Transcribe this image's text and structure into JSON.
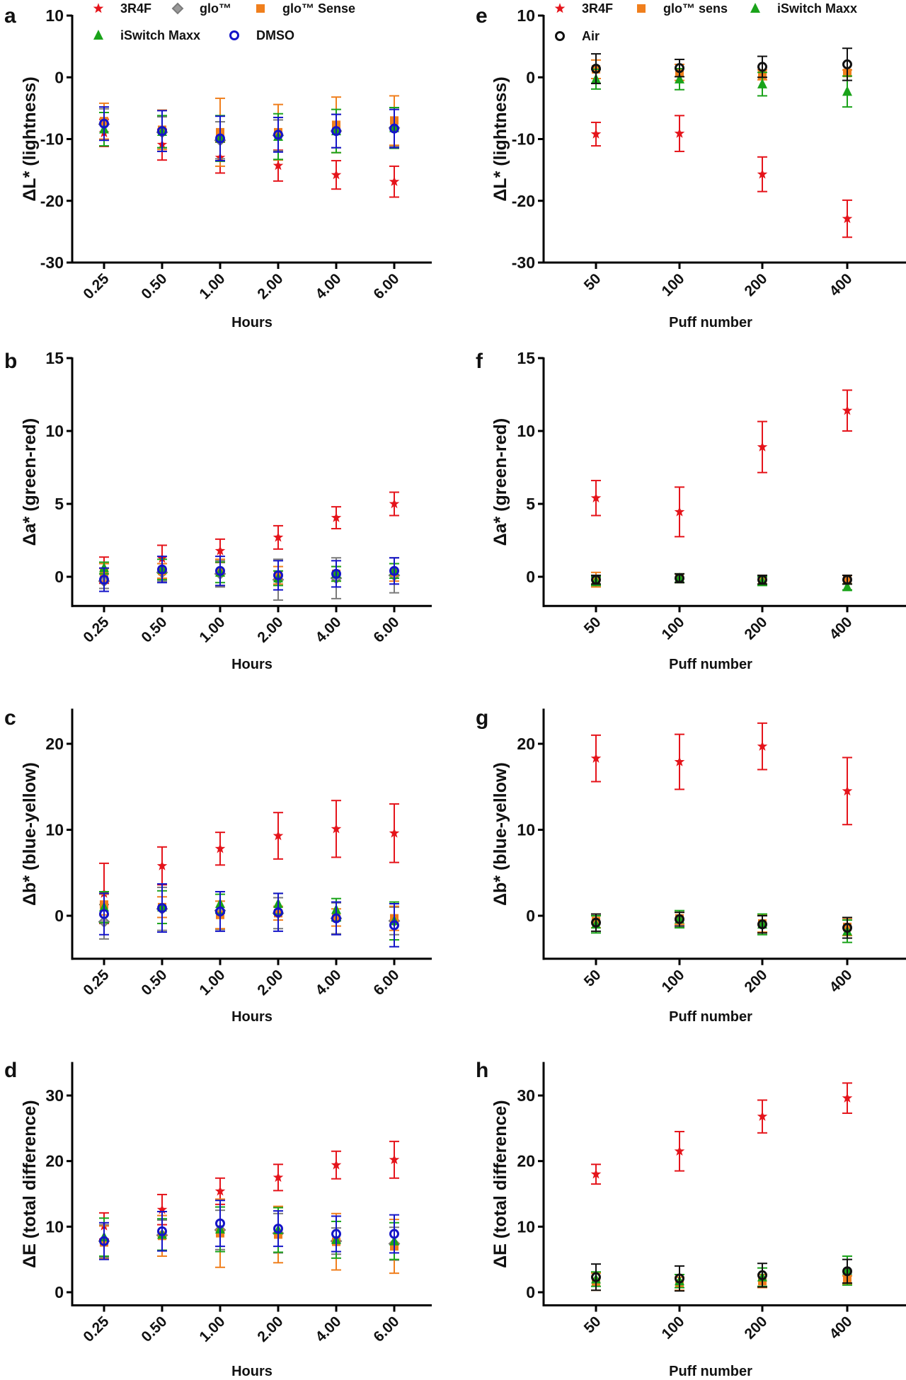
{
  "legends": [
    {
      "items": [
        "3R4F",
        "glo™",
        "glo™ Sense",
        "iSwitch Maxx",
        "DMSO"
      ]
    },
    {
      "items": [
        "3R4F",
        "glo™ sens",
        "iSwitch Maxx",
        "Air"
      ]
    }
  ],
  "series_styles": {
    "3R4F": {
      "marker": "star",
      "color": "#e5141b"
    },
    "glo™": {
      "marker": "diamond",
      "color": "#7a7a7a"
    },
    "glo™ Sense": {
      "marker": "square",
      "color": "#f07f1d"
    },
    "glo™ sens": {
      "marker": "square",
      "color": "#f07f1d"
    },
    "iSwitch Maxx": {
      "marker": "triangle",
      "color": "#1aa31a"
    },
    "DMSO": {
      "marker": "circle",
      "color": "#1414c8"
    },
    "Air": {
      "marker": "circle",
      "color": "#111111"
    }
  },
  "chart_data": [
    {
      "panel": "a",
      "type": "scatter",
      "xlabel": "Hours",
      "ylabel": "ΔL* (lightness)",
      "ylim": [
        -30,
        10
      ],
      "yticks": [
        10,
        0,
        -10,
        -20,
        -30
      ],
      "categories": [
        "0.25",
        "0.50",
        "1.00",
        "2.00",
        "4.00",
        "6.00"
      ],
      "series": [
        {
          "name": "3R4F",
          "mean": [
            -9.0,
            -10.9,
            -13.0,
            -14.3,
            -15.8,
            -16.9
          ],
          "sd": [
            2.2,
            2.5,
            2.5,
            2.5,
            2.3,
            2.5
          ]
        },
        {
          "name": "glo™",
          "mean": [
            -7.6,
            -8.9,
            -10.2,
            -9.4,
            -8.7,
            -8.2
          ],
          "sd": [
            2.5,
            2.5,
            3.0,
            2.5,
            2.7,
            3.0
          ]
        },
        {
          "name": "glo™ Sense",
          "mean": [
            -7.1,
            -8.5,
            -8.9,
            -8.9,
            -7.7,
            -7.0
          ],
          "sd": [
            2.9,
            3.2,
            5.5,
            4.5,
            4.5,
            4.0
          ]
        },
        {
          "name": "iSwitch Maxx",
          "mean": [
            -8.4,
            -8.8,
            -9.9,
            -9.6,
            -8.7,
            -8.2
          ],
          "sd": [
            2.7,
            2.6,
            3.7,
            3.7,
            3.5,
            3.3
          ]
        },
        {
          "name": "DMSO",
          "mean": [
            -7.5,
            -8.7,
            -9.9,
            -9.3,
            -8.7,
            -8.3
          ],
          "sd": [
            2.7,
            3.3,
            3.6,
            2.8,
            2.7,
            3.1
          ]
        }
      ]
    },
    {
      "panel": "b",
      "type": "scatter",
      "xlabel": "Hours",
      "ylabel": "Δa* (green-red)",
      "ylim": [
        -2,
        15
      ],
      "yticks": [
        15,
        10,
        5,
        0
      ],
      "categories": [
        "0.25",
        "0.50",
        "1.00",
        "2.00",
        "4.00",
        "6.00"
      ],
      "series": [
        {
          "name": "3R4F",
          "mean": [
            0.45,
            1.26,
            1.78,
            2.7,
            4.05,
            5.0
          ],
          "sd": [
            0.9,
            0.9,
            0.8,
            0.8,
            0.75,
            0.8
          ]
        },
        {
          "name": "glo™",
          "mean": [
            -0.3,
            0.3,
            0.2,
            -0.2,
            -0.1,
            0.1
          ],
          "sd": [
            0.5,
            0.6,
            0.9,
            1.4,
            1.4,
            1.2
          ]
        },
        {
          "name": "glo™ Sense",
          "mean": [
            0.3,
            0.4,
            0.3,
            0.1,
            0.2,
            0.3
          ],
          "sd": [
            0.6,
            0.5,
            0.9,
            0.6,
            0.5,
            0.6
          ]
        },
        {
          "name": "iSwitch Maxx",
          "mean": [
            0.6,
            0.5,
            0.3,
            -0.1,
            0.2,
            0.4
          ],
          "sd": [
            0.4,
            0.7,
            0.7,
            0.5,
            0.5,
            0.5
          ]
        },
        {
          "name": "DMSO",
          "mean": [
            -0.2,
            0.5,
            0.4,
            0.1,
            0.2,
            0.4
          ],
          "sd": [
            0.8,
            0.9,
            1.0,
            1.0,
            0.9,
            0.9
          ]
        }
      ]
    },
    {
      "panel": "c",
      "type": "scatter",
      "xlabel": "Hours",
      "ylabel": "Δb* (blue-yellow)",
      "ylim": [
        -5,
        24
      ],
      "yticks": [
        20,
        10,
        0
      ],
      "categories": [
        "0.25",
        "0.50",
        "1.00",
        "2.00",
        "4.00",
        "6.00"
      ],
      "series": [
        {
          "name": "3R4F",
          "mean": [
            2.6,
            5.8,
            7.8,
            9.3,
            10.1,
            9.6
          ],
          "sd": [
            3.5,
            2.2,
            1.9,
            2.7,
            3.3,
            3.4
          ]
        },
        {
          "name": "glo™",
          "mean": [
            -0.7,
            0.8,
            0.6,
            0.3,
            -0.3,
            -0.6
          ],
          "sd": [
            2.0,
            2.5,
            2.2,
            1.8,
            1.8,
            1.6
          ]
        },
        {
          "name": "glo™ Sense",
          "mean": [
            1.3,
            1.0,
            0.1,
            0.3,
            -0.2,
            -0.3
          ],
          "sd": [
            1.2,
            1.2,
            1.6,
            0.8,
            1.0,
            1.4
          ]
        },
        {
          "name": "iSwitch Maxx",
          "mean": [
            1.0,
            1.0,
            1.4,
            1.4,
            0.7,
            -0.6
          ],
          "sd": [
            1.8,
            1.9,
            1.1,
            1.2,
            1.3,
            2.2
          ]
        },
        {
          "name": "DMSO",
          "mean": [
            0.2,
            0.9,
            0.5,
            0.4,
            -0.3,
            -1.1
          ],
          "sd": [
            2.4,
            2.8,
            2.3,
            2.2,
            1.9,
            2.5
          ]
        }
      ]
    },
    {
      "panel": "d",
      "type": "scatter",
      "xlabel": "Hours",
      "ylabel": "ΔE (total difference)",
      "ylim": [
        -2,
        35
      ],
      "yticks": [
        30,
        20,
        10,
        0
      ],
      "categories": [
        "0.25",
        "0.50",
        "1.00",
        "2.00",
        "4.00",
        "6.00"
      ],
      "series": [
        {
          "name": "3R4F",
          "mean": [
            10.1,
            12.6,
            15.4,
            17.5,
            19.4,
            20.2
          ],
          "sd": [
            2.0,
            2.3,
            2.0,
            2.0,
            2.1,
            2.8
          ]
        },
        {
          "name": "glo™",
          "mean": [
            7.8,
            8.7,
            9.5,
            9.0,
            7.8,
            7.4
          ],
          "sd": [
            2.5,
            2.3,
            3.0,
            3.0,
            2.0,
            2.5
          ]
        },
        {
          "name": "glo™ Sense",
          "mean": [
            7.6,
            8.6,
            9.0,
            8.8,
            7.7,
            7.0
          ],
          "sd": [
            2.5,
            3.1,
            5.2,
            4.3,
            4.3,
            4.1
          ]
        },
        {
          "name": "iSwitch Maxx",
          "mean": [
            8.4,
            8.8,
            9.6,
            9.5,
            8.0,
            7.8
          ],
          "sd": [
            2.9,
            2.4,
            3.4,
            3.4,
            2.8,
            2.8
          ]
        },
        {
          "name": "DMSO",
          "mean": [
            7.8,
            9.3,
            10.5,
            9.7,
            8.9,
            8.9
          ],
          "sd": [
            2.8,
            3.0,
            3.5,
            2.7,
            2.7,
            2.9
          ]
        }
      ]
    },
    {
      "panel": "e",
      "type": "scatter",
      "xlabel": "Puff number",
      "ylabel": "ΔL* (lightness)",
      "ylim": [
        -30,
        10
      ],
      "yticks": [
        10,
        0,
        -10,
        -20,
        -30
      ],
      "categories": [
        "50",
        "100",
        "200",
        "400"
      ],
      "series": [
        {
          "name": "3R4F",
          "mean": [
            -9.2,
            -9.1,
            -15.7,
            -22.9
          ],
          "sd": [
            1.9,
            2.9,
            2.8,
            3.0
          ]
        },
        {
          "name": "glo™ sens",
          "mean": [
            1.3,
            0.8,
            0.4,
            0.7
          ],
          "sd": [
            1.5,
            1.3,
            0.8,
            0.5
          ]
        },
        {
          "name": "iSwitch Maxx",
          "mean": [
            -0.3,
            -0.3,
            -1.1,
            -2.3
          ],
          "sd": [
            1.6,
            1.7,
            1.9,
            2.5
          ]
        },
        {
          "name": "Air",
          "mean": [
            1.4,
            1.5,
            1.7,
            2.1
          ],
          "sd": [
            2.4,
            1.4,
            1.7,
            2.6
          ]
        }
      ]
    },
    {
      "panel": "f",
      "type": "scatter",
      "xlabel": "Puff number",
      "ylabel": "Δa* (green-red)",
      "ylim": [
        -2,
        15
      ],
      "yticks": [
        15,
        10,
        5,
        0
      ],
      "categories": [
        "50",
        "100",
        "200",
        "400"
      ],
      "series": [
        {
          "name": "3R4F",
          "mean": [
            5.4,
            4.45,
            8.9,
            11.4
          ],
          "sd": [
            1.2,
            1.7,
            1.75,
            1.4
          ]
        },
        {
          "name": "glo™ sens",
          "mean": [
            -0.2,
            -0.1,
            -0.2,
            -0.2
          ],
          "sd": [
            0.5,
            0.3,
            0.3,
            0.3
          ]
        },
        {
          "name": "iSwitch Maxx",
          "mean": [
            -0.3,
            -0.1,
            -0.3,
            -0.7
          ],
          "sd": [
            0.3,
            0.3,
            0.3,
            0.2
          ]
        },
        {
          "name": "Air",
          "mean": [
            -0.2,
            -0.1,
            -0.2,
            -0.2
          ],
          "sd": [
            0.3,
            0.3,
            0.3,
            0.3
          ]
        }
      ]
    },
    {
      "panel": "g",
      "type": "scatter",
      "xlabel": "Puff number",
      "ylabel": "Δb* (blue-yellow)",
      "ylim": [
        -5,
        24
      ],
      "yticks": [
        20,
        10,
        0
      ],
      "categories": [
        "50",
        "100",
        "200",
        "400"
      ],
      "series": [
        {
          "name": "3R4F",
          "mean": [
            18.3,
            17.9,
            19.7,
            14.5
          ],
          "sd": [
            2.7,
            3.2,
            2.7,
            3.9
          ]
        },
        {
          "name": "glo™ sens",
          "mean": [
            -0.6,
            -0.3,
            -0.9,
            -1.3
          ],
          "sd": [
            0.8,
            0.7,
            1.0,
            1.0
          ]
        },
        {
          "name": "iSwitch Maxx",
          "mean": [
            -1.0,
            -0.4,
            -1.0,
            -1.8
          ],
          "sd": [
            1.0,
            1.0,
            1.2,
            1.3
          ]
        },
        {
          "name": "Air",
          "mean": [
            -0.8,
            -0.4,
            -1.0,
            -1.4
          ],
          "sd": [
            1.0,
            0.8,
            1.0,
            1.2
          ]
        }
      ]
    },
    {
      "panel": "h",
      "type": "scatter",
      "xlabel": "Puff number",
      "ylabel": "ΔE (total difference)",
      "ylim": [
        -2,
        35
      ],
      "yticks": [
        30,
        20,
        10,
        0
      ],
      "categories": [
        "50",
        "100",
        "200",
        "400"
      ],
      "series": [
        {
          "name": "3R4F",
          "mean": [
            18.0,
            21.5,
            26.8,
            29.6
          ],
          "sd": [
            1.5,
            3.0,
            2.5,
            2.3
          ]
        },
        {
          "name": "glo™ sens",
          "mean": [
            1.6,
            1.3,
            1.7,
            1.9
          ],
          "sd": [
            1.3,
            1.0,
            1.0,
            0.6
          ]
        },
        {
          "name": "iSwitch Maxx",
          "mean": [
            2.0,
            1.7,
            2.3,
            3.3
          ],
          "sd": [
            1.1,
            1.0,
            1.4,
            2.2
          ]
        },
        {
          "name": "Air",
          "mean": [
            2.3,
            2.1,
            2.6,
            3.2
          ],
          "sd": [
            2.0,
            1.9,
            1.8,
            1.8
          ]
        }
      ]
    }
  ]
}
